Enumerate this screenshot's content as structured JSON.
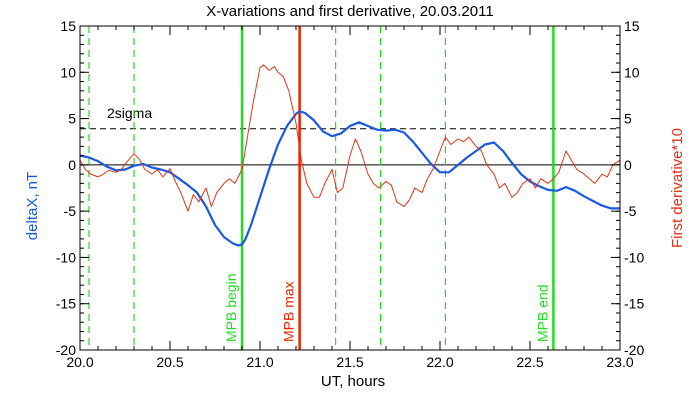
{
  "chart_data": {
    "type": "line",
    "title": "X-variations and first derivative, 20.03.2011",
    "xlabel": "UT, hours",
    "ylabel_left": "deltaX, nT",
    "ylabel_right": "First derivative*10",
    "xlim": [
      20.0,
      23.0
    ],
    "ylim_left": [
      -20,
      15
    ],
    "ylim_right": [
      -20,
      15
    ],
    "x_ticks": [
      "20.0",
      "20.5",
      "21.0",
      "21.5",
      "22.0",
      "22.5",
      "23.0"
    ],
    "y_ticks_left": [
      "15",
      "10",
      "5",
      "0",
      "-5",
      "-10",
      "-15",
      "-20"
    ],
    "y_ticks_right": [
      "15",
      "10",
      "5",
      "0",
      "-5",
      "-10",
      "-15",
      "-20"
    ],
    "sigma_label": "2sigma",
    "sigma_level": 3.9,
    "zero_level": 0,
    "colors": {
      "deltaX": "#1a5ae0",
      "derivative": "#e0331a",
      "green": "#22dd22",
      "red": "#ee2200",
      "axis": "#000000",
      "left_label": "#1a5ae0",
      "right_label": "#e0331a"
    },
    "series": [
      {
        "key": "deltaX",
        "x": [
          20.0,
          20.05,
          20.1,
          20.15,
          20.2,
          20.25,
          20.3,
          20.35,
          20.4,
          20.45,
          20.5,
          20.55,
          20.6,
          20.65,
          20.7,
          20.75,
          20.8,
          20.85,
          20.88,
          20.9,
          20.92,
          20.95,
          21.0,
          21.05,
          21.1,
          21.15,
          21.2,
          21.22,
          21.25,
          21.3,
          21.35,
          21.4,
          21.45,
          21.5,
          21.55,
          21.6,
          21.65,
          21.7,
          21.75,
          21.8,
          21.85,
          21.9,
          21.95,
          22.0,
          22.05,
          22.1,
          22.15,
          22.2,
          22.25,
          22.3,
          22.35,
          22.4,
          22.45,
          22.5,
          22.55,
          22.6,
          22.65,
          22.7,
          22.75,
          22.8,
          22.85,
          22.9,
          22.95,
          23.0
        ],
        "values": [
          1.0,
          0.8,
          0.4,
          -0.2,
          -0.6,
          -0.5,
          -0.1,
          0.1,
          -0.3,
          -0.5,
          -0.8,
          -1.5,
          -2.2,
          -3.0,
          -4.5,
          -6.5,
          -7.8,
          -8.5,
          -8.7,
          -8.6,
          -8.0,
          -6.5,
          -3.5,
          -0.5,
          2.2,
          4.2,
          5.5,
          5.8,
          5.6,
          4.8,
          3.6,
          3.1,
          3.4,
          4.2,
          4.6,
          4.2,
          3.8,
          3.7,
          3.8,
          3.5,
          2.5,
          1.3,
          0.1,
          -0.8,
          -0.8,
          0.0,
          0.8,
          1.5,
          2.2,
          2.4,
          1.5,
          0.2,
          -1.0,
          -1.8,
          -2.3,
          -2.7,
          -2.8,
          -2.4,
          -2.8,
          -3.4,
          -3.9,
          -4.4,
          -4.7,
          -4.7
        ]
      },
      {
        "key": "derivative",
        "x": [
          20.0,
          20.03,
          20.06,
          20.1,
          20.13,
          20.16,
          20.2,
          20.23,
          20.26,
          20.3,
          20.33,
          20.36,
          20.4,
          20.43,
          20.46,
          20.5,
          20.53,
          20.56,
          20.6,
          20.63,
          20.66,
          20.7,
          20.73,
          20.76,
          20.8,
          20.83,
          20.86,
          20.9,
          20.93,
          20.96,
          21.0,
          21.02,
          21.05,
          21.08,
          21.1,
          21.13,
          21.16,
          21.2,
          21.23,
          21.26,
          21.3,
          21.33,
          21.36,
          21.4,
          21.43,
          21.46,
          21.5,
          21.53,
          21.56,
          21.6,
          21.63,
          21.66,
          21.7,
          21.73,
          21.76,
          21.8,
          21.83,
          21.86,
          21.9,
          21.93,
          21.96,
          22.0,
          22.03,
          22.06,
          22.1,
          22.13,
          22.16,
          22.2,
          22.23,
          22.26,
          22.3,
          22.33,
          22.36,
          22.4,
          22.43,
          22.46,
          22.5,
          22.53,
          22.56,
          22.6,
          22.63,
          22.66,
          22.7,
          22.73,
          22.76,
          22.8,
          22.83,
          22.86,
          22.9,
          22.93,
          22.96,
          23.0
        ],
        "values": [
          0.5,
          -0.5,
          -1.0,
          -1.3,
          -1.0,
          -0.6,
          -0.8,
          -0.5,
          0.3,
          1.2,
          0.6,
          -0.5,
          -1.0,
          -0.5,
          -1.3,
          -0.4,
          -1.8,
          -3.0,
          -5.0,
          -3.2,
          -4.0,
          -2.5,
          -4.5,
          -3.0,
          -2.0,
          -1.5,
          -2.0,
          -0.5,
          3.0,
          6.5,
          10.5,
          10.8,
          10.2,
          10.6,
          10.0,
          9.5,
          8.0,
          4.5,
          0.5,
          -2.0,
          -3.5,
          -3.5,
          -2.0,
          -0.5,
          -3.0,
          -2.5,
          1.0,
          2.8,
          1.5,
          -1.0,
          -2.0,
          -2.5,
          -1.8,
          -2.2,
          -4.0,
          -4.5,
          -3.8,
          -2.5,
          -3.0,
          -1.5,
          -0.5,
          1.5,
          3.0,
          2.2,
          2.8,
          2.5,
          3.0,
          2.0,
          1.5,
          0.0,
          -1.0,
          -2.5,
          -2.0,
          -3.5,
          -3.0,
          -2.0,
          -1.5,
          -2.5,
          -1.5,
          -2.0,
          -1.5,
          -0.8,
          1.5,
          0.5,
          -0.5,
          -1.0,
          -1.5,
          -2.0,
          -1.0,
          -1.3,
          0.0,
          0.5
        ]
      }
    ],
    "markers": [
      {
        "x": 20.05,
        "style": "dashed",
        "color": "green",
        "label": ""
      },
      {
        "x": 20.3,
        "style": "dashed",
        "color": "green",
        "label": ""
      },
      {
        "x": 20.9,
        "style": "solid",
        "color": "green",
        "label": "MPB begin"
      },
      {
        "x": 21.22,
        "style": "solid",
        "color": "red",
        "label": "MPB max"
      },
      {
        "x": 21.42,
        "style": "dashed",
        "color": "green",
        "label": ""
      },
      {
        "x": 21.67,
        "style": "dashed",
        "color": "green",
        "label": ""
      },
      {
        "x": 22.03,
        "style": "dashed",
        "color": "green",
        "label": ""
      },
      {
        "x": 22.63,
        "style": "solid",
        "color": "green",
        "label": "MPB end"
      }
    ]
  }
}
